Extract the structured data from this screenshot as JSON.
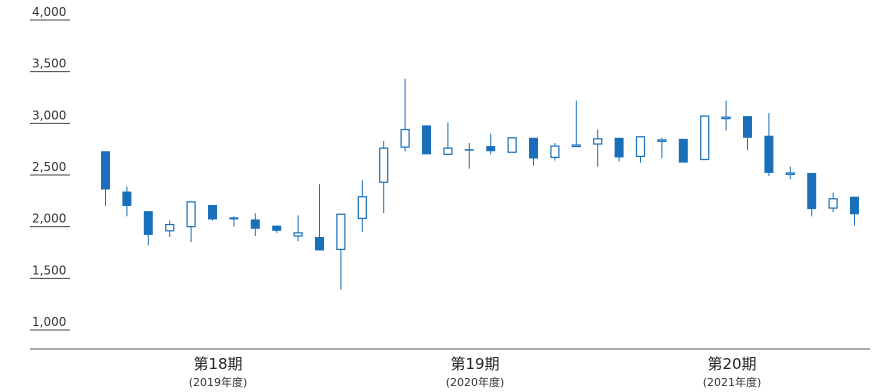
{
  "chart_data": {
    "type": "candlestick",
    "ylim": [
      1000,
      4000
    ],
    "yticks": [
      "4,000",
      "3,500",
      "3,000",
      "2,500",
      "2,000",
      "1,500",
      "1,000"
    ],
    "ytick_values": [
      4000,
      3500,
      3000,
      2500,
      2000,
      1500,
      1000
    ],
    "periods": [
      {
        "label": "第18期",
        "year": "(2019年度)"
      },
      {
        "label": "第19期",
        "year": "(2020年度)"
      },
      {
        "label": "第20期",
        "year": "(2021年度)"
      }
    ],
    "colors": {
      "down": "#1a6fba",
      "up_fill": "#ffffff",
      "up_stroke": "#1a6fba",
      "wick": "#1a6fba",
      "axis": "#555555"
    },
    "candles": [
      {
        "open": 2730,
        "close": 2360,
        "high": 2730,
        "low": 2200
      },
      {
        "open": 2340,
        "close": 2200,
        "high": 2390,
        "low": 2100
      },
      {
        "open": 2150,
        "close": 1920,
        "high": 2150,
        "low": 1820
      },
      {
        "open": 1960,
        "close": 2020,
        "high": 2060,
        "low": 1900
      },
      {
        "open": 2000,
        "close": 2240,
        "high": 2240,
        "low": 1850
      },
      {
        "open": 2210,
        "close": 2070,
        "high": 2210,
        "low": 2060
      },
      {
        "open": 2090,
        "close": 2070,
        "high": 2100,
        "low": 2000
      },
      {
        "open": 2070,
        "close": 1980,
        "high": 2130,
        "low": 1910
      },
      {
        "open": 2010,
        "close": 1960,
        "high": 2010,
        "low": 1940
      },
      {
        "open": 1910,
        "close": 1940,
        "high": 2110,
        "low": 1860
      },
      {
        "open": 1900,
        "close": 1770,
        "high": 2410,
        "low": 1770
      },
      {
        "open": 1780,
        "close": 2120,
        "high": 2120,
        "low": 1390
      },
      {
        "open": 2080,
        "close": 2290,
        "high": 2450,
        "low": 1950
      },
      {
        "open": 2430,
        "close": 2760,
        "high": 2830,
        "low": 2130
      },
      {
        "open": 2770,
        "close": 2940,
        "high": 3430,
        "low": 2730
      },
      {
        "open": 2980,
        "close": 2700,
        "high": 2980,
        "low": 2700
      },
      {
        "open": 2700,
        "close": 2760,
        "high": 3010,
        "low": 2700
      },
      {
        "open": 2750,
        "close": 2740,
        "high": 2810,
        "low": 2560
      },
      {
        "open": 2780,
        "close": 2730,
        "high": 2900,
        "low": 2700
      },
      {
        "open": 2720,
        "close": 2860,
        "high": 2860,
        "low": 2720
      },
      {
        "open": 2860,
        "close": 2660,
        "high": 2860,
        "low": 2590
      },
      {
        "open": 2670,
        "close": 2780,
        "high": 2810,
        "low": 2640
      },
      {
        "open": 2790,
        "close": 2790,
        "high": 3220,
        "low": 2790
      },
      {
        "open": 2800,
        "close": 2850,
        "high": 2940,
        "low": 2580
      },
      {
        "open": 2860,
        "close": 2670,
        "high": 2860,
        "low": 2630
      },
      {
        "open": 2680,
        "close": 2870,
        "high": 2870,
        "low": 2620
      },
      {
        "open": 2840,
        "close": 2840,
        "high": 2860,
        "low": 2660
      },
      {
        "open": 2850,
        "close": 2620,
        "high": 2850,
        "low": 2620
      },
      {
        "open": 2650,
        "close": 3070,
        "high": 3070,
        "low": 2650
      },
      {
        "open": 3060,
        "close": 3060,
        "high": 3220,
        "low": 2930
      },
      {
        "open": 3070,
        "close": 2860,
        "high": 3070,
        "low": 2740
      },
      {
        "open": 2880,
        "close": 2520,
        "high": 3100,
        "low": 2490
      },
      {
        "open": 2520,
        "close": 2520,
        "high": 2580,
        "low": 2460
      },
      {
        "open": 2520,
        "close": 2170,
        "high": 2520,
        "low": 2100
      },
      {
        "open": 2180,
        "close": 2270,
        "high": 2330,
        "low": 2140
      },
      {
        "open": 2290,
        "close": 2120,
        "high": 2290,
        "low": 2010
      }
    ]
  }
}
